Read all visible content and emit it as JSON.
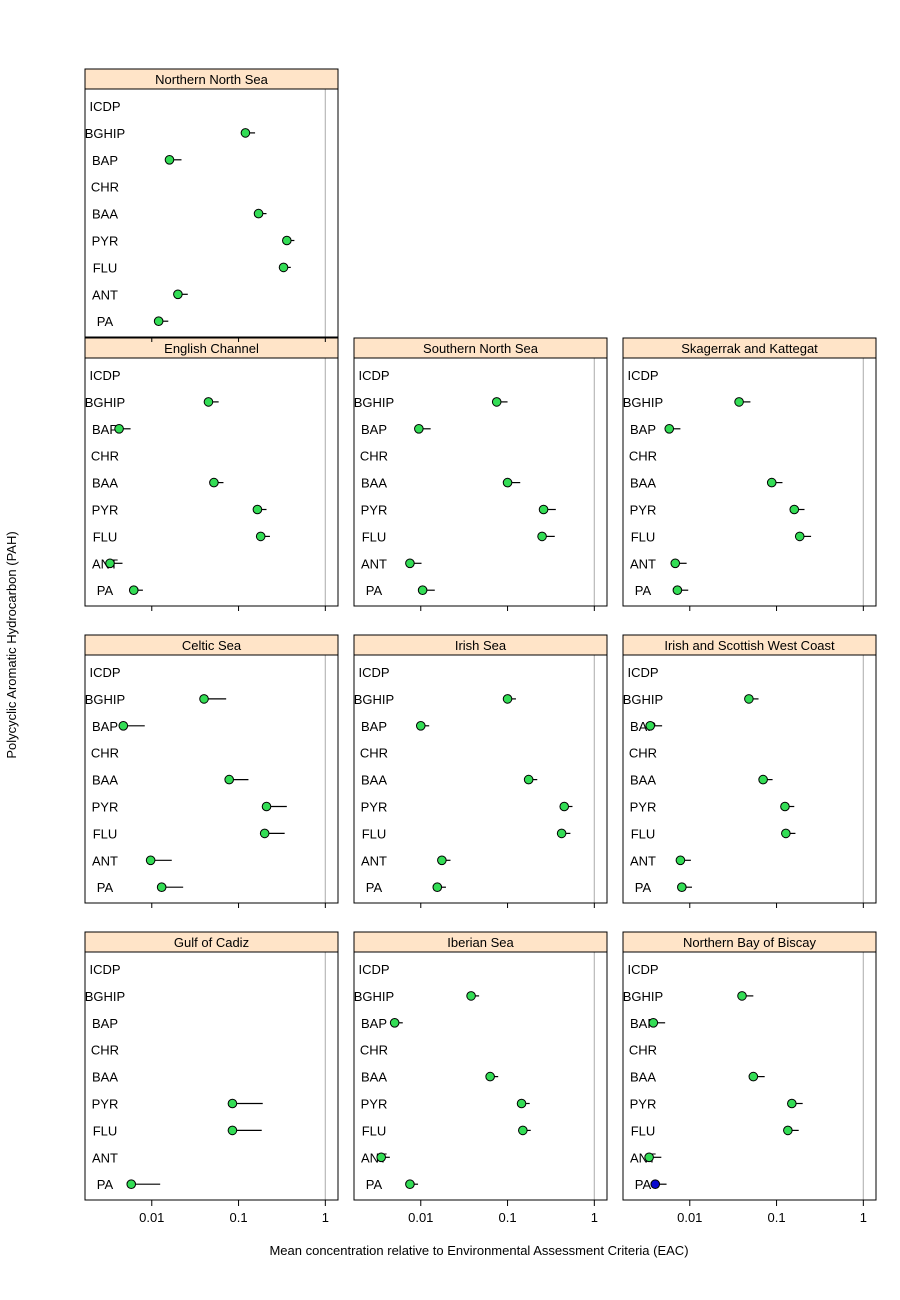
{
  "chart_data": {
    "type": "dotplot",
    "xlabel": "Mean concentration relative to Environmental Assessment Criteria (EAC)",
    "ylabel": "Polycyclic Aromatic Hydrocarbon (PAH)",
    "x_scale": "log10",
    "xlim": [
      0.0017,
      1.4
    ],
    "x_ticks": [
      {
        "value": 0.01,
        "label": "0.01"
      },
      {
        "value": 0.1,
        "label": "0.1"
      },
      {
        "value": 1,
        "label": "1"
      }
    ],
    "reference_line": 1,
    "categories": [
      "ICDP",
      "BGHIP",
      "BAP",
      "CHR",
      "BAA",
      "PYR",
      "FLU",
      "ANT",
      "PA"
    ],
    "colors": {
      "point_normal": "#33dd55",
      "point_highlight": "#0a0ad0",
      "strip_bg": "#ffe4c8",
      "reference_line": "#b8b8b8"
    },
    "panels": [
      {
        "title": "Northern North Sea",
        "points": [
          {
            "cat": "BGHIP",
            "value": 0.12,
            "upper": 0.155
          },
          {
            "cat": "BAP",
            "value": 0.016,
            "upper": 0.022
          },
          {
            "cat": "BAA",
            "value": 0.17,
            "upper": 0.21
          },
          {
            "cat": "PYR",
            "value": 0.36,
            "upper": 0.44
          },
          {
            "cat": "FLU",
            "value": 0.33,
            "upper": 0.4
          },
          {
            "cat": "ANT",
            "value": 0.02,
            "upper": 0.026
          },
          {
            "cat": "PA",
            "value": 0.012,
            "upper": 0.0155
          }
        ]
      },
      {
        "title": "English Channel",
        "points": [
          {
            "cat": "BGHIP",
            "value": 0.045,
            "upper": 0.059
          },
          {
            "cat": "BAP",
            "value": 0.0042,
            "upper": 0.0057
          },
          {
            "cat": "BAA",
            "value": 0.052,
            "upper": 0.067
          },
          {
            "cat": "PYR",
            "value": 0.165,
            "upper": 0.21
          },
          {
            "cat": "FLU",
            "value": 0.18,
            "upper": 0.23
          },
          {
            "cat": "ANT",
            "value": 0.0033,
            "upper": 0.0046
          },
          {
            "cat": "PA",
            "value": 0.0062,
            "upper": 0.0079
          }
        ]
      },
      {
        "title": "Southern North Sea",
        "points": [
          {
            "cat": "BGHIP",
            "value": 0.075,
            "upper": 0.1
          },
          {
            "cat": "BAP",
            "value": 0.0095,
            "upper": 0.013
          },
          {
            "cat": "BAA",
            "value": 0.1,
            "upper": 0.14
          },
          {
            "cat": "PYR",
            "value": 0.26,
            "upper": 0.36
          },
          {
            "cat": "FLU",
            "value": 0.25,
            "upper": 0.35
          },
          {
            "cat": "ANT",
            "value": 0.0075,
            "upper": 0.0102
          },
          {
            "cat": "PA",
            "value": 0.0105,
            "upper": 0.0145
          }
        ]
      },
      {
        "title": "Skagerrak and Kattegat",
        "points": [
          {
            "cat": "BGHIP",
            "value": 0.037,
            "upper": 0.05
          },
          {
            "cat": "BAP",
            "value": 0.0058,
            "upper": 0.0078
          },
          {
            "cat": "BAA",
            "value": 0.088,
            "upper": 0.117
          },
          {
            "cat": "PYR",
            "value": 0.16,
            "upper": 0.21
          },
          {
            "cat": "FLU",
            "value": 0.185,
            "upper": 0.25
          },
          {
            "cat": "ANT",
            "value": 0.0068,
            "upper": 0.0092
          },
          {
            "cat": "PA",
            "value": 0.0072,
            "upper": 0.0096
          }
        ]
      },
      {
        "title": "Celtic Sea",
        "points": [
          {
            "cat": "BGHIP",
            "value": 0.04,
            "upper": 0.072
          },
          {
            "cat": "BAP",
            "value": 0.0047,
            "upper": 0.0083
          },
          {
            "cat": "BAA",
            "value": 0.078,
            "upper": 0.13
          },
          {
            "cat": "PYR",
            "value": 0.21,
            "upper": 0.36
          },
          {
            "cat": "FLU",
            "value": 0.2,
            "upper": 0.34
          },
          {
            "cat": "ANT",
            "value": 0.0097,
            "upper": 0.017
          },
          {
            "cat": "PA",
            "value": 0.013,
            "upper": 0.023
          }
        ]
      },
      {
        "title": "Irish Sea",
        "points": [
          {
            "cat": "BGHIP",
            "value": 0.1,
            "upper": 0.125
          },
          {
            "cat": "BAP",
            "value": 0.01,
            "upper": 0.0125
          },
          {
            "cat": "BAA",
            "value": 0.175,
            "upper": 0.22
          },
          {
            "cat": "PYR",
            "value": 0.45,
            "upper": 0.56
          },
          {
            "cat": "FLU",
            "value": 0.42,
            "upper": 0.53
          },
          {
            "cat": "ANT",
            "value": 0.0175,
            "upper": 0.022
          },
          {
            "cat": "PA",
            "value": 0.0155,
            "upper": 0.0195
          }
        ]
      },
      {
        "title": "Irish and Scottish West Coast",
        "points": [
          {
            "cat": "BGHIP",
            "value": 0.048,
            "upper": 0.062
          },
          {
            "cat": "BAP",
            "value": 0.0035,
            "upper": 0.0048
          },
          {
            "cat": "BAA",
            "value": 0.07,
            "upper": 0.09
          },
          {
            "cat": "PYR",
            "value": 0.125,
            "upper": 0.16
          },
          {
            "cat": "FLU",
            "value": 0.128,
            "upper": 0.165
          },
          {
            "cat": "ANT",
            "value": 0.0078,
            "upper": 0.0103
          },
          {
            "cat": "PA",
            "value": 0.0081,
            "upper": 0.0106
          }
        ]
      },
      {
        "title": "Gulf of Cadiz",
        "points": [
          {
            "cat": "PYR",
            "value": 0.085,
            "upper": 0.19
          },
          {
            "cat": "FLU",
            "value": 0.085,
            "upper": 0.185
          },
          {
            "cat": "PA",
            "value": 0.0058,
            "upper": 0.0125
          }
        ]
      },
      {
        "title": "Iberian Sea",
        "points": [
          {
            "cat": "BGHIP",
            "value": 0.038,
            "upper": 0.047
          },
          {
            "cat": "BAP",
            "value": 0.005,
            "upper": 0.0062
          },
          {
            "cat": "BAA",
            "value": 0.063,
            "upper": 0.078
          },
          {
            "cat": "PYR",
            "value": 0.145,
            "upper": 0.18
          },
          {
            "cat": "FLU",
            "value": 0.15,
            "upper": 0.185
          },
          {
            "cat": "ANT",
            "value": 0.0035,
            "upper": 0.0044
          },
          {
            "cat": "PA",
            "value": 0.0075,
            "upper": 0.0093
          }
        ]
      },
      {
        "title": "Northern Bay of Biscay",
        "points": [
          {
            "cat": "BGHIP",
            "value": 0.04,
            "upper": 0.054
          },
          {
            "cat": "BAP",
            "value": 0.0038,
            "upper": 0.0052
          },
          {
            "cat": "BAA",
            "value": 0.054,
            "upper": 0.073
          },
          {
            "cat": "PYR",
            "value": 0.15,
            "upper": 0.2
          },
          {
            "cat": "FLU",
            "value": 0.135,
            "upper": 0.18
          },
          {
            "cat": "ANT",
            "value": 0.0034,
            "upper": 0.0047
          },
          {
            "cat": "PA",
            "value": 0.004,
            "upper": 0.0054,
            "highlight": true
          }
        ]
      }
    ]
  }
}
